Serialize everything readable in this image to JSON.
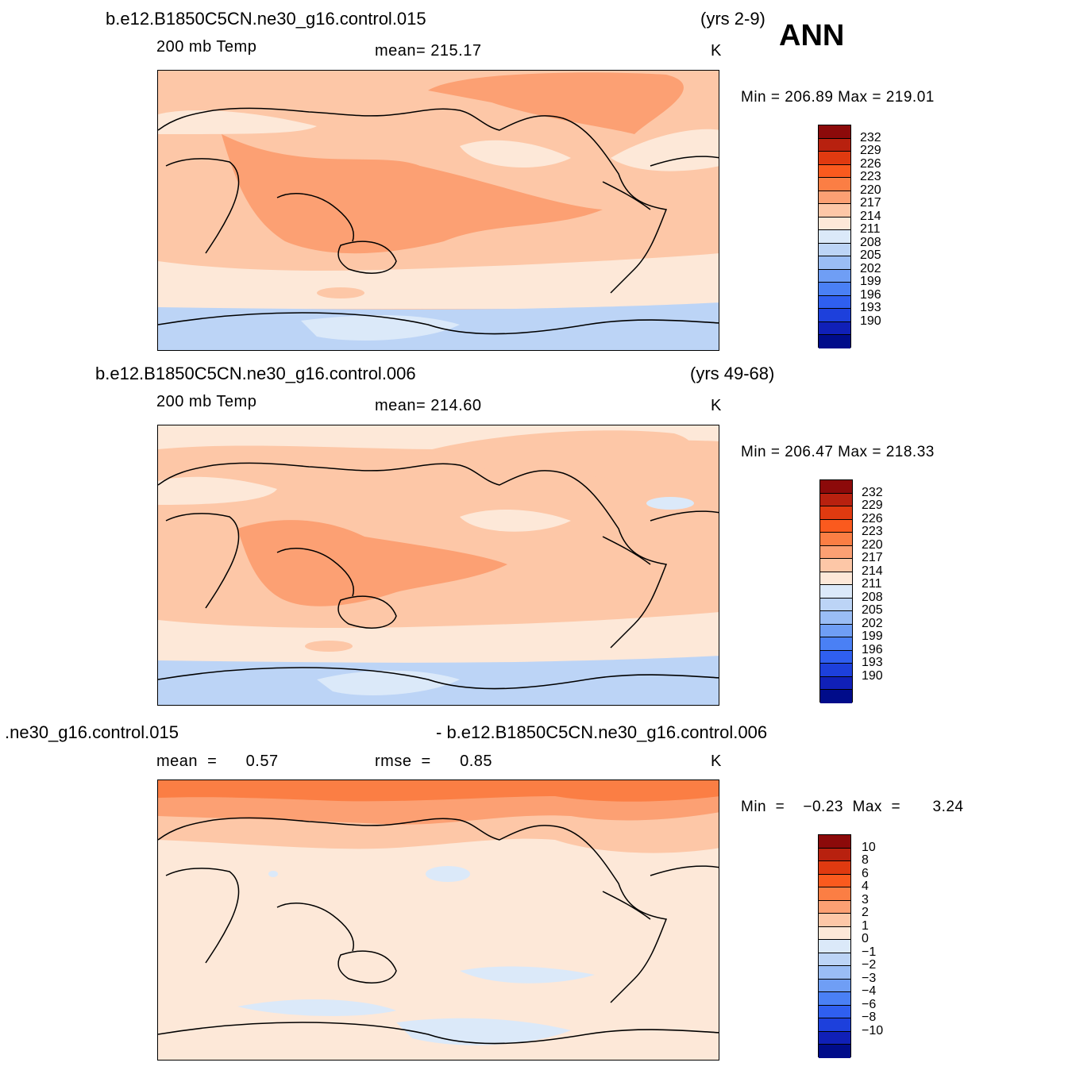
{
  "header": {
    "season": "ANN"
  },
  "panels": [
    {
      "case_name": "b.e12.B1850C5CN.ne30_g16.control.015",
      "years": "(yrs 2-9)",
      "variable": "200 mb Temp",
      "stat_label": "mean= 215.17",
      "stat2_label": "",
      "units": "K",
      "minmax": "Min  =  206.89  Max  =  219.01",
      "colorbar": {
        "labels": [
          "232",
          "229",
          "226",
          "223",
          "220",
          "217",
          "214",
          "211",
          "208",
          "205",
          "202",
          "199",
          "196",
          "193",
          "190"
        ],
        "colors": [
          "#8c0a0a",
          "#b8210f",
          "#e03a10",
          "#fa5a1e",
          "#fb7e44",
          "#fca073",
          "#fdc7a7",
          "#fde8d8",
          "#dbe9f9",
          "#bcd4f6",
          "#9abdf5",
          "#6f9ef5",
          "#4a80f5",
          "#2f5ff0",
          "#1d40dc",
          "#1020b8",
          "#000c8a"
        ]
      }
    },
    {
      "case_name": "b.e12.B1850C5CN.ne30_g16.control.006",
      "years": "(yrs 49-68)",
      "variable": "200 mb Temp",
      "stat_label": "mean= 214.60",
      "stat2_label": "",
      "units": "K",
      "minmax": "Min  =  206.47  Max  =  218.33",
      "colorbar": {
        "labels": [
          "232",
          "229",
          "226",
          "223",
          "220",
          "217",
          "214",
          "211",
          "208",
          "205",
          "202",
          "199",
          "196",
          "193",
          "190"
        ],
        "colors": [
          "#8c0a0a",
          "#b8210f",
          "#e03a10",
          "#fa5a1e",
          "#fb7e44",
          "#fca073",
          "#fdc7a7",
          "#fde8d8",
          "#dbe9f9",
          "#bcd4f6",
          "#9abdf5",
          "#6f9ef5",
          "#4a80f5",
          "#2f5ff0",
          "#1d40dc",
          "#1020b8",
          "#000c8a"
        ]
      }
    },
    {
      "case_name": ".ne30_g16.control.015",
      "years": "- b.e12.B1850C5CN.ne30_g16.control.006",
      "variable": "mean  =      0.57",
      "stat_label": "rmse  =      0.85",
      "stat2_label": "",
      "units": "K",
      "minmax": "Min  =    −0.23  Max  =       3.24",
      "colorbar": {
        "labels": [
          "10",
          "8",
          "6",
          "4",
          "3",
          "2",
          "1",
          "0",
          "−1",
          "−2",
          "−3",
          "−4",
          "−6",
          "−8",
          "−10"
        ],
        "colors": [
          "#8c0a0a",
          "#b8210f",
          "#e03a10",
          "#fa5a1e",
          "#fb7e44",
          "#fca073",
          "#fdc7a7",
          "#fde8d8",
          "#dbe9f9",
          "#bcd4f6",
          "#9abdf5",
          "#6f9ef5",
          "#4a80f5",
          "#2f5ff0",
          "#1d40dc",
          "#1020b8",
          "#000c8a"
        ]
      }
    }
  ]
}
